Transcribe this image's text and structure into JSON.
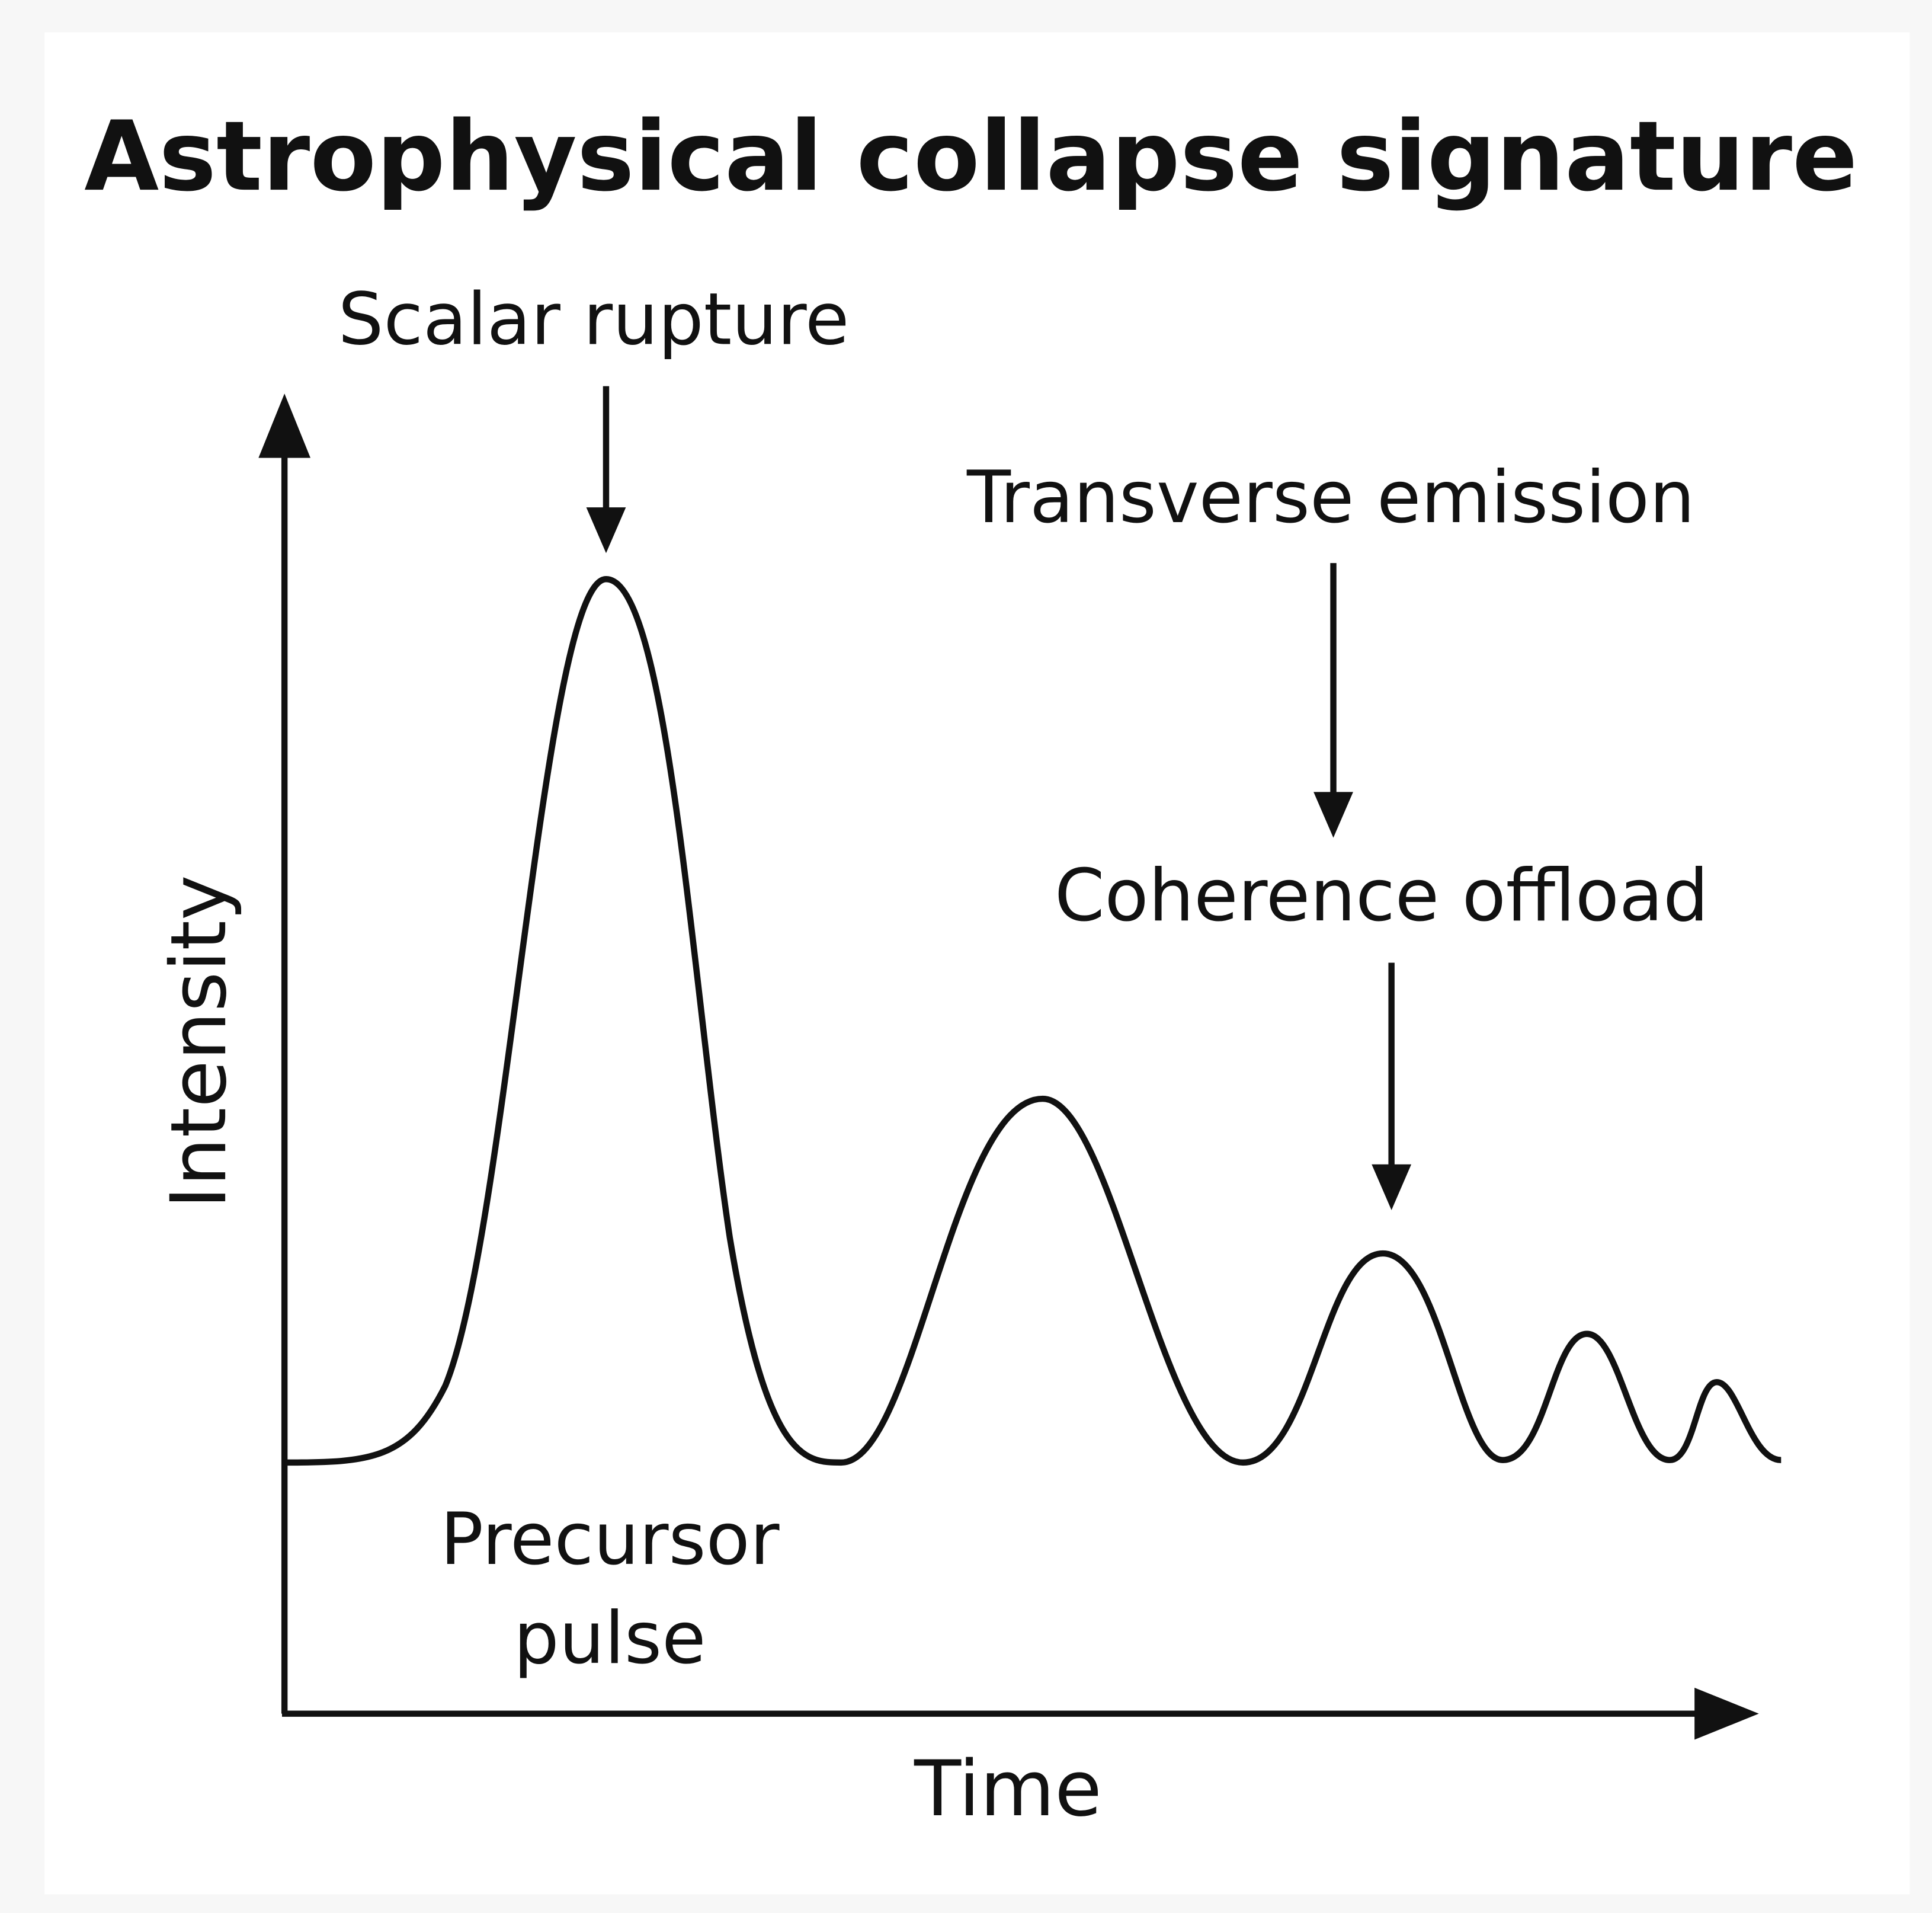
{
  "title": "Astrophysical collapse signature",
  "axes": {
    "y_label": "Intensity",
    "x_label": "Time"
  },
  "annotations": [
    {
      "label": "Scalar rupture"
    },
    {
      "label": "Transverse emission"
    },
    {
      "label": "Coherence offload"
    },
    {
      "lines": [
        "Precursor",
        "pulse"
      ]
    }
  ]
}
